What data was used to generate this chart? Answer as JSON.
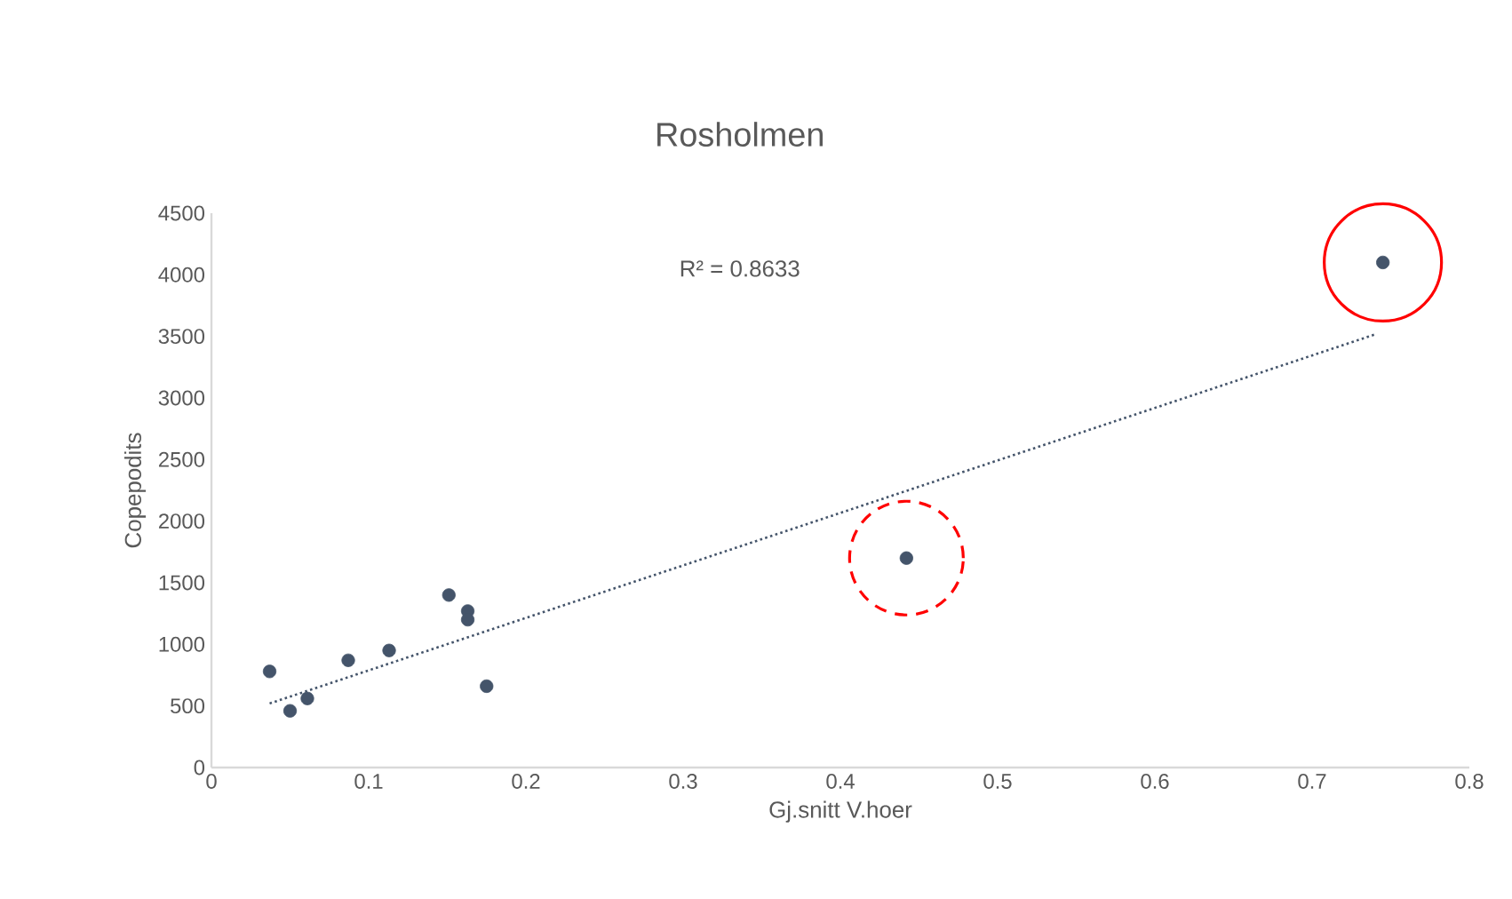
{
  "chart_data": {
    "type": "scatter",
    "title": "Rosholmen",
    "xlabel": "Gj.snitt V.hoer",
    "ylabel": "Copepodits",
    "xlim": [
      0,
      0.8
    ],
    "xticks": [
      0,
      0.1,
      0.2,
      0.3,
      0.4,
      0.5,
      0.6,
      0.7,
      0.8
    ],
    "ylim": [
      0,
      4500
    ],
    "yticks": [
      0,
      500,
      1000,
      1500,
      2000,
      2500,
      3000,
      3500,
      4000,
      4500
    ],
    "grid": false,
    "marker": "circle",
    "annotations": [
      "R² = 0.8633"
    ],
    "series": [
      {
        "color": "#44546a",
        "x": [
          0.037,
          0.05,
          0.061,
          0.087,
          0.113,
          0.151,
          0.163,
          0.163,
          0.175,
          0.442,
          0.745
        ],
        "values": [
          780,
          460,
          560,
          870,
          950,
          1400,
          1270,
          1200,
          660,
          1700,
          4100
        ]
      },
      {
        "type": "line",
        "color": "#44546a",
        "line_style": "dotted",
        "marker": "none",
        "x": [
          0.037,
          0.741
        ],
        "values": [
          520,
          3520
        ]
      }
    ]
  }
}
